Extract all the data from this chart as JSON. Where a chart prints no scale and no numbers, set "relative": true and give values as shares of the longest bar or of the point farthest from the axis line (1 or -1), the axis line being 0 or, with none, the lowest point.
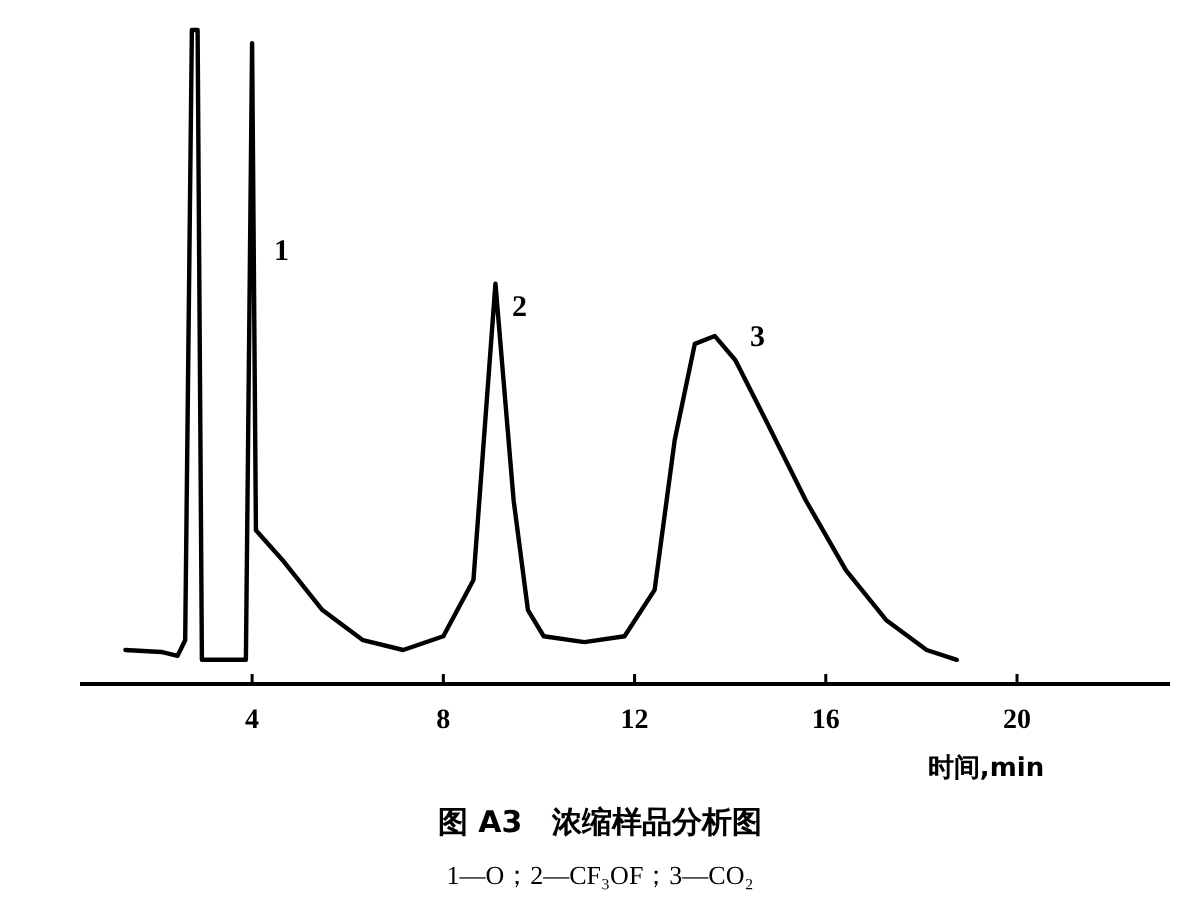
{
  "chart_data": {
    "type": "line",
    "title": "图 A3　浓缩样品分析图",
    "subtitle": "1—O；2—CF₃OF；3—CO₂",
    "xlabel": "时间,min",
    "relative": true,
    "xlim": [
      0.4,
      23.2
    ],
    "xticks": [
      4,
      8,
      12,
      16,
      20
    ],
    "annotations": [
      "1",
      "2",
      "3"
    ],
    "x": [
      1.35,
      2.1,
      2.44,
      2.6,
      2.74,
      2.86,
      2.95,
      3.87,
      4.0,
      4.08,
      4.63,
      5.47,
      6.32,
      7.16,
      8.0,
      8.63,
      9.09,
      9.47,
      9.77,
      10.1,
      10.95,
      11.79,
      12.42,
      12.84,
      13.26,
      13.68,
      14.11,
      14.74,
      15.58,
      16.42,
      17.26,
      18.11,
      18.74
    ],
    "series": [
      {
        "color": "#000000",
        "values": [
          0.052,
          0.049,
          0.043,
          0.067,
          1,
          1,
          0.037,
          0.037,
          0.98,
          0.235,
          0.19,
          0.113,
          0.067,
          0.052,
          0.073,
          0.159,
          0.612,
          0.281,
          0.113,
          0.073,
          0.064,
          0.073,
          0.144,
          0.373,
          0.52,
          0.532,
          0.495,
          0.404,
          0.281,
          0.174,
          0.098,
          0.052,
          0.037
        ]
      }
    ]
  }
}
